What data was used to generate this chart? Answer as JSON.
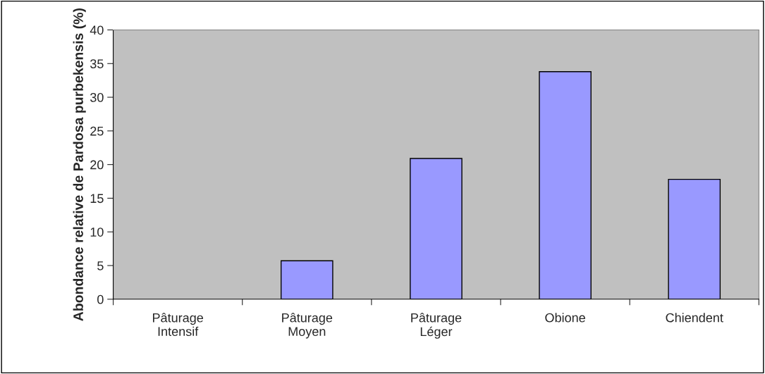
{
  "chart_data": {
    "type": "bar",
    "ylabel": "Abondance relative de Pardosa purbekensis (%)",
    "categories": [
      "Pâturage\nIntensif",
      "Pâturage\nMoyen",
      "Pâturage\nLéger",
      "Obione",
      "Chiendent"
    ],
    "values": [
      0,
      5.7,
      20.9,
      33.8,
      17.8
    ],
    "color": "#9999ff",
    "ylim": [
      0,
      40
    ],
    "yticks": [
      0,
      5,
      10,
      15,
      20,
      25,
      30,
      35,
      40
    ],
    "grid": false
  }
}
